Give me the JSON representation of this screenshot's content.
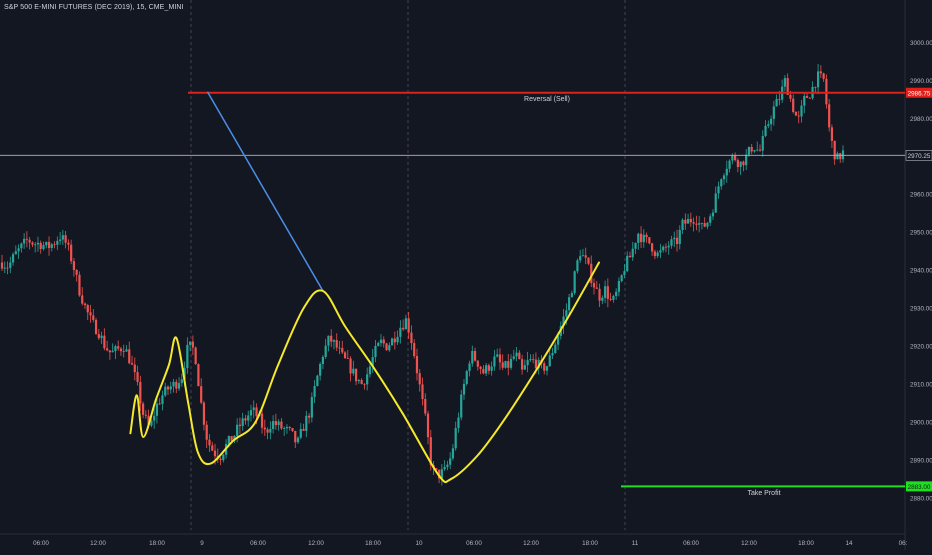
{
  "symbol_title": "S&P 500 E-MINI FUTURES (DEC 2019), 15, CME_MINI",
  "colors": {
    "background": "#131722",
    "up_candle": "#26a69a",
    "down_candle": "#ef5350",
    "reversal_line": "#e0201a",
    "take_profit_line": "#1ee01e",
    "current_price_line": "#b2b5be",
    "trend_line": "#4a8fe7",
    "pattern_curve": "#f5e92a",
    "axis_text": "#b2b5be",
    "session_divider": "#434651"
  },
  "chart_data": {
    "type": "candlestick",
    "title": "S&P 500 E-MINI FUTURES (DEC 2019), 15, CME_MINI",
    "y_axis": {
      "range": [
        2875,
        3006
      ],
      "ticks": [
        2880,
        2890,
        2900,
        2910,
        2920,
        2930,
        2940,
        2950,
        2960,
        2970,
        2980,
        2990,
        3000
      ],
      "tick_labels": [
        "2880.00",
        "2890.00",
        "2900.00",
        "2910.00",
        "2920.00",
        "2930.00",
        "2940.00",
        "2950.00",
        "2960.00",
        "2970.00",
        "2980.00",
        "2990.00",
        "3000.00"
      ]
    },
    "x_axis": {
      "tick_labels": [
        "06:00",
        "12:00",
        "18:00",
        "9",
        "06:00",
        "12:00",
        "18:00",
        "10",
        "06:00",
        "12:00",
        "18:00",
        "11",
        "06:00",
        "12:00",
        "18:00",
        "14",
        "06:"
      ]
    },
    "grid": false,
    "price_path": [
      2942,
      2941,
      2944,
      2946,
      2948,
      2947,
      2947,
      2946,
      2947,
      2949,
      2947,
      2942,
      2935,
      2930,
      2926,
      2924,
      2920,
      2918,
      2919,
      2920,
      2916,
      2910,
      2902,
      2898,
      2904,
      2907,
      2909,
      2910,
      2912,
      2920,
      2919,
      2905,
      2895,
      2892,
      2891,
      2894,
      2896,
      2899,
      2901,
      2903,
      2901,
      2897,
      2900,
      2899,
      2898,
      2897,
      2894,
      2899,
      2903,
      2911,
      2918,
      2922,
      2920,
      2917,
      2915,
      2912,
      2910,
      2913,
      2918,
      2921,
      2920,
      2922,
      2925,
      2927,
      2920,
      2910,
      2900,
      2887,
      2886,
      2887,
      2891,
      2901,
      2910,
      2918,
      2916,
      2913,
      2915,
      2917,
      2914,
      2915,
      2918,
      2913,
      2916,
      2916,
      2914,
      2915,
      2920,
      2925,
      2930,
      2937,
      2945,
      2942,
      2937,
      2933,
      2935,
      2931,
      2935,
      2941,
      2944,
      2950,
      2948,
      2947,
      2944,
      2945,
      2947,
      2947,
      2952,
      2953,
      2954,
      2951,
      2953,
      2958,
      2965,
      2968,
      2970,
      2968,
      2970,
      2973,
      2971,
      2977,
      2982,
      2985,
      2990,
      2984,
      2979,
      2985,
      2987,
      2991,
      2990,
      2975,
      2969,
      2971
    ],
    "horizontal_lines": [
      {
        "name": "Reversal (Sell)",
        "price": 2986.75,
        "price_label": "2986.75",
        "color": "#e0201a"
      },
      {
        "name": "Take Profit",
        "price": 2883.0,
        "price_label": "2883.00",
        "color": "#1ee01e"
      },
      {
        "name": "",
        "price": 2970.25,
        "price_label": "2970.25",
        "color": "#b2b5be"
      }
    ],
    "annotations": [
      "Reversal (Sell)",
      "Take Profit"
    ],
    "trend_line": {
      "from": {
        "x_index": 32,
        "price": 2987
      },
      "to": {
        "x_index": 50,
        "price": 2934.5
      }
    },
    "pattern_curve_points": [
      {
        "x_index": 20.0,
        "price": 2897
      },
      {
        "x_index": 21.0,
        "price": 2907
      },
      {
        "x_index": 22.0,
        "price": 2896
      },
      {
        "x_index": 24.0,
        "price": 2906
      },
      {
        "x_index": 26.0,
        "price": 2915
      },
      {
        "x_index": 27.2,
        "price": 2922
      },
      {
        "x_index": 29.0,
        "price": 2905
      },
      {
        "x_index": 30.5,
        "price": 2892
      },
      {
        "x_index": 32.5,
        "price": 2889
      },
      {
        "x_index": 36.0,
        "price": 2895
      },
      {
        "x_index": 39.5,
        "price": 2900
      },
      {
        "x_index": 43.0,
        "price": 2915
      },
      {
        "x_index": 47.0,
        "price": 2930
      },
      {
        "x_index": 50.0,
        "price": 2934.5
      },
      {
        "x_index": 53.5,
        "price": 2925
      },
      {
        "x_index": 58.0,
        "price": 2914
      },
      {
        "x_index": 62.5,
        "price": 2902
      },
      {
        "x_index": 68.0,
        "price": 2886
      },
      {
        "x_index": 70.0,
        "price": 2885
      },
      {
        "x_index": 74.0,
        "price": 2891
      },
      {
        "x_index": 78.0,
        "price": 2900
      },
      {
        "x_index": 83.0,
        "price": 2913
      },
      {
        "x_index": 88.0,
        "price": 2927
      },
      {
        "x_index": 93.0,
        "price": 2942
      }
    ]
  }
}
